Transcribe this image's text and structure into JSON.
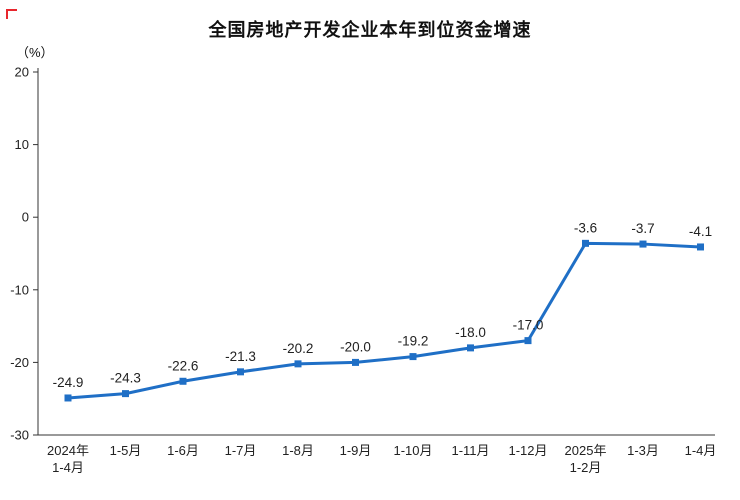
{
  "chart": {
    "title": "全国房地产开发企业本年到位资金增速",
    "unit_label": "（%）"
  },
  "chart_data": {
    "type": "line",
    "title": "全国房地产开发企业本年到位资金增速",
    "ylabel": "（%）",
    "xlabel": "",
    "categories": [
      "2024年\n1-4月",
      "1-5月",
      "1-6月",
      "1-7月",
      "1-8月",
      "1-9月",
      "1-10月",
      "1-11月",
      "1-12月",
      "2025年\n1-2月",
      "1-3月",
      "1-4月"
    ],
    "values": [
      -24.9,
      -24.3,
      -22.6,
      -21.3,
      -20.2,
      -20.0,
      -19.2,
      -18.0,
      -17.0,
      -3.6,
      -3.7,
      -4.1
    ],
    "data_labels": [
      "-24.9",
      "-24.3",
      "-22.6",
      "-21.3",
      "-20.2",
      "-20.0",
      "-19.2",
      "-18.0",
      "-17.0",
      "-3.6",
      "-3.7",
      "-4.1"
    ],
    "ylim": [
      -30,
      20
    ],
    "yticks": [
      20,
      10,
      0,
      -10,
      -20,
      -30
    ],
    "grid": false,
    "legend": "none",
    "line_color": "#1f6fc6",
    "marker": "square",
    "axis_color": "#333333",
    "label_color": "#222222",
    "accent_red": "#e8262d"
  }
}
